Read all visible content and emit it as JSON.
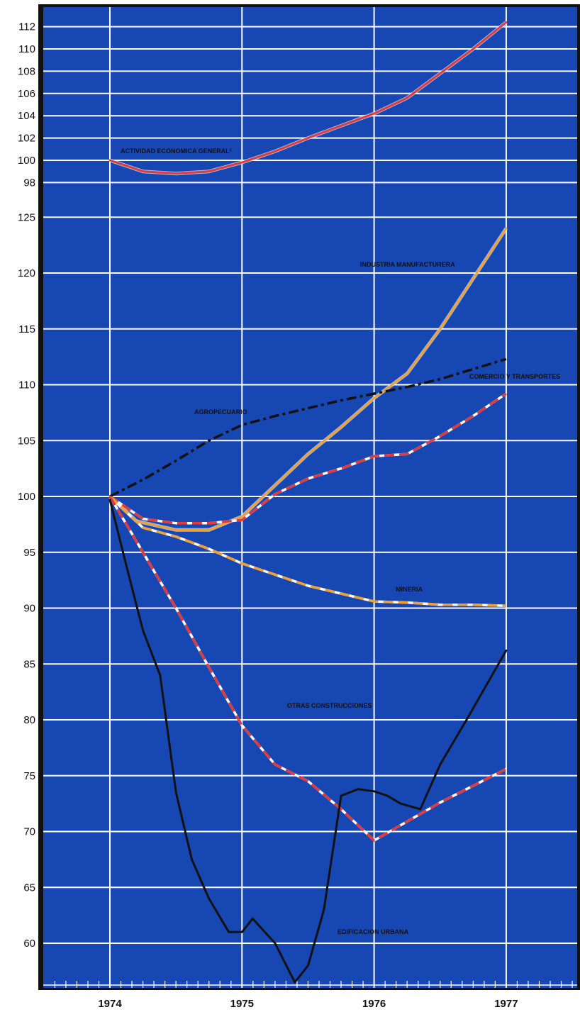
{
  "chart_data": [
    {
      "type": "line",
      "panel": "top",
      "title": "",
      "xlabel": "",
      "ylabel": "",
      "xlim": [
        1974,
        1977
      ],
      "ylim": [
        97,
        113
      ],
      "x_ticks": [
        "1974",
        "1975",
        "1976",
        "1977"
      ],
      "y_ticks": [
        98,
        100,
        102,
        104,
        106,
        108,
        110,
        112
      ],
      "grid": true,
      "colors": {
        "background": "#1747b3",
        "grid": "#ffffff",
        "frame": "#111111"
      },
      "series": [
        {
          "name": "ACTIVIDAD ECONOMICA GENERAL¹",
          "color": "#e23a3a",
          "style": "solid",
          "x": [
            1974.0,
            1974.25,
            1974.5,
            1974.75,
            1975.0,
            1975.25,
            1975.5,
            1975.75,
            1976.0,
            1976.25,
            1976.5,
            1976.75,
            1977.0
          ],
          "y": [
            100.0,
            99.0,
            98.8,
            99.0,
            99.8,
            100.8,
            102.0,
            103.1,
            104.2,
            105.6,
            107.8,
            110.0,
            112.4
          ]
        }
      ]
    },
    {
      "type": "line",
      "panel": "bottom",
      "title": "",
      "xlabel": "",
      "ylabel": "",
      "xlim": [
        1974,
        1977
      ],
      "ylim": [
        56,
        126
      ],
      "x_ticks": [
        "1974",
        "1975",
        "1976",
        "1977"
      ],
      "y_ticks": [
        60,
        65,
        70,
        75,
        80,
        85,
        90,
        95,
        100,
        105,
        110,
        115,
        120,
        125
      ],
      "grid": true,
      "colors": {
        "background": "#1747b3",
        "grid": "#ffffff",
        "frame": "#111111"
      },
      "series": [
        {
          "name": "INDUSTRIA MANUFACTURERA",
          "color": "#f0a030",
          "style": "solid",
          "x": [
            1974.0,
            1974.2,
            1974.5,
            1974.75,
            1975.0,
            1975.25,
            1975.5,
            1975.75,
            1976.0,
            1976.25,
            1976.5,
            1976.75,
            1977.0
          ],
          "y": [
            100.0,
            97.8,
            97.0,
            97.0,
            98.2,
            101.0,
            103.8,
            106.2,
            108.8,
            111.0,
            115.0,
            119.5,
            124.0
          ]
        },
        {
          "name": "COMERCIO Y TRANSPORTES",
          "color": "#e23a3a",
          "style": "dashed",
          "x": [
            1974.0,
            1974.25,
            1974.5,
            1974.75,
            1975.0,
            1975.25,
            1975.5,
            1975.75,
            1976.0,
            1976.25,
            1976.5,
            1976.75,
            1977.0
          ],
          "y": [
            100.0,
            98.0,
            97.6,
            97.6,
            97.9,
            100.2,
            101.6,
            102.5,
            103.6,
            103.8,
            105.4,
            107.2,
            109.2
          ]
        },
        {
          "name": "AGROPECUARIO",
          "color": "#111111",
          "style": "dashdot",
          "x": [
            1974.0,
            1974.25,
            1974.5,
            1974.75,
            1975.0,
            1975.25,
            1975.5,
            1975.75,
            1976.0,
            1976.25,
            1976.5,
            1976.75,
            1977.0
          ],
          "y": [
            100.0,
            101.5,
            103.2,
            105.0,
            106.4,
            107.2,
            107.9,
            108.6,
            109.2,
            109.8,
            110.5,
            111.4,
            112.3
          ]
        },
        {
          "name": "MINERIA",
          "color": "#f0a030",
          "style": "dashed",
          "x": [
            1974.0,
            1974.25,
            1974.5,
            1974.75,
            1975.0,
            1975.25,
            1975.5,
            1975.75,
            1976.0,
            1976.25,
            1976.5,
            1976.75,
            1977.0
          ],
          "y": [
            100.0,
            97.2,
            96.4,
            95.3,
            94.0,
            93.0,
            92.0,
            91.3,
            90.6,
            90.5,
            90.3,
            90.3,
            90.2
          ]
        },
        {
          "name": "OTRAS CONSTRUCCIONES",
          "color": "#e23a3a",
          "style": "dashed",
          "x": [
            1974.0,
            1974.25,
            1974.5,
            1974.75,
            1975.0,
            1975.25,
            1975.5,
            1975.75,
            1976.0,
            1976.5,
            1977.0
          ],
          "y": [
            100.0,
            95.0,
            90.0,
            84.7,
            79.5,
            76.0,
            74.5,
            72.0,
            69.2,
            72.6,
            75.6
          ]
        },
        {
          "name": "EDIFICACION URBANA",
          "color": "#111111",
          "style": "solid",
          "x": [
            1974.0,
            1974.12,
            1974.25,
            1974.38,
            1974.5,
            1974.62,
            1974.75,
            1974.9,
            1975.0,
            1975.08,
            1975.25,
            1975.4,
            1975.5,
            1975.62,
            1975.75,
            1975.88,
            1976.0,
            1976.1,
            1976.2,
            1976.35,
            1976.5,
            1976.7,
            1977.0
          ],
          "y": [
            99.7,
            94.0,
            88.0,
            84.0,
            73.5,
            67.5,
            64.0,
            61.0,
            61.0,
            62.2,
            60.0,
            56.5,
            58.0,
            63.0,
            73.2,
            73.8,
            73.6,
            73.2,
            72.5,
            72.0,
            76.0,
            80.0,
            86.2
          ]
        }
      ]
    }
  ]
}
